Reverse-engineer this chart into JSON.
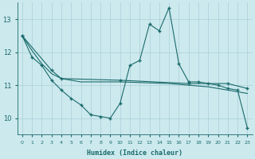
{
  "xlabel": "Humidex (Indice chaleur)",
  "bg_color": "#cce9ee",
  "grid_color": "#aacfd8",
  "line_color": "#1a6b6b",
  "xlim": [
    -0.5,
    23.5
  ],
  "ylim": [
    9.5,
    13.5
  ],
  "yticks": [
    10,
    11,
    12,
    13
  ],
  "xticks": [
    0,
    1,
    2,
    3,
    4,
    5,
    6,
    7,
    8,
    9,
    10,
    11,
    12,
    13,
    14,
    15,
    16,
    17,
    18,
    19,
    20,
    21,
    22,
    23
  ],
  "line1_x": [
    0,
    1,
    2,
    3,
    4,
    5,
    6,
    7,
    8,
    9,
    10,
    11,
    12,
    13,
    14,
    15,
    16,
    17,
    18,
    19,
    20,
    21,
    22,
    23
  ],
  "line1_y": [
    12.5,
    11.85,
    11.6,
    11.15,
    10.85,
    10.6,
    10.4,
    10.1,
    10.05,
    10.0,
    10.45,
    11.6,
    11.75,
    12.85,
    12.65,
    13.35,
    11.65,
    11.1,
    11.1,
    11.05,
    11.0,
    10.9,
    10.85,
    9.7
  ],
  "line2_x": [
    0,
    1,
    2,
    3,
    4,
    5,
    6,
    7,
    8,
    9,
    10,
    15,
    17,
    19,
    20,
    21,
    22,
    23
  ],
  "line2_y": [
    12.5,
    12.05,
    11.65,
    11.35,
    11.2,
    11.15,
    11.1,
    11.1,
    11.1,
    11.1,
    11.1,
    11.05,
    11.0,
    10.95,
    10.9,
    10.85,
    10.8,
    10.75
  ],
  "line3_x": [
    0,
    3,
    4,
    10,
    17,
    21,
    23
  ],
  "line3_y": [
    12.5,
    11.45,
    11.2,
    11.15,
    11.05,
    11.05,
    10.9
  ]
}
